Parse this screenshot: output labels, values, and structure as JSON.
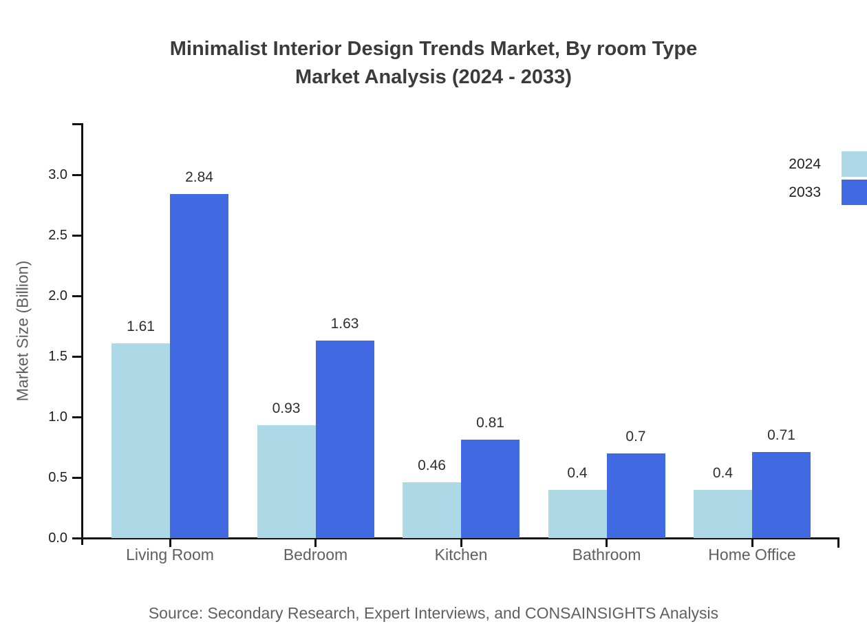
{
  "title": {
    "line1": "Minimalist Interior Design Trends Market, By room Type",
    "line2": "Market Analysis (2024 - 2033)"
  },
  "footer": {
    "source": "Source: Secondary Research, Expert Interviews, and CONSAINSIGHTS Analysis"
  },
  "colors": {
    "series_2024": "#ADD8E6",
    "series_2033": "#4169E1",
    "axis": "#111111",
    "title_text": "#3b3b3b",
    "muted_text": "#5f5f5f"
  },
  "chart_data": {
    "type": "bar",
    "title": "Minimalist Interior Design Trends Market, By room Type Market Analysis (2024 - 2033)",
    "categories": [
      "Living Room",
      "Bedroom",
      "Kitchen",
      "Bathroom",
      "Home Office"
    ],
    "series": [
      {
        "name": "2024",
        "color": "#ADD8E6",
        "values": [
          1.61,
          0.93,
          0.46,
          0.4,
          0.4
        ]
      },
      {
        "name": "2033",
        "color": "#4169E1",
        "values": [
          2.84,
          1.63,
          0.81,
          0.7,
          0.71
        ]
      }
    ],
    "xlabel": "",
    "ylabel": "Market Size (Billion)",
    "ylim": [
      0,
      3.42
    ],
    "yticks": [
      0.0,
      0.5,
      1.0,
      1.5,
      2.0,
      2.5,
      3.0
    ],
    "ytick_labels": [
      "0.0",
      "0.5",
      "1.0",
      "1.5",
      "2.0",
      "2.5",
      "3.0"
    ],
    "grid": false,
    "value_labels": true,
    "legend_position": "top-right"
  }
}
